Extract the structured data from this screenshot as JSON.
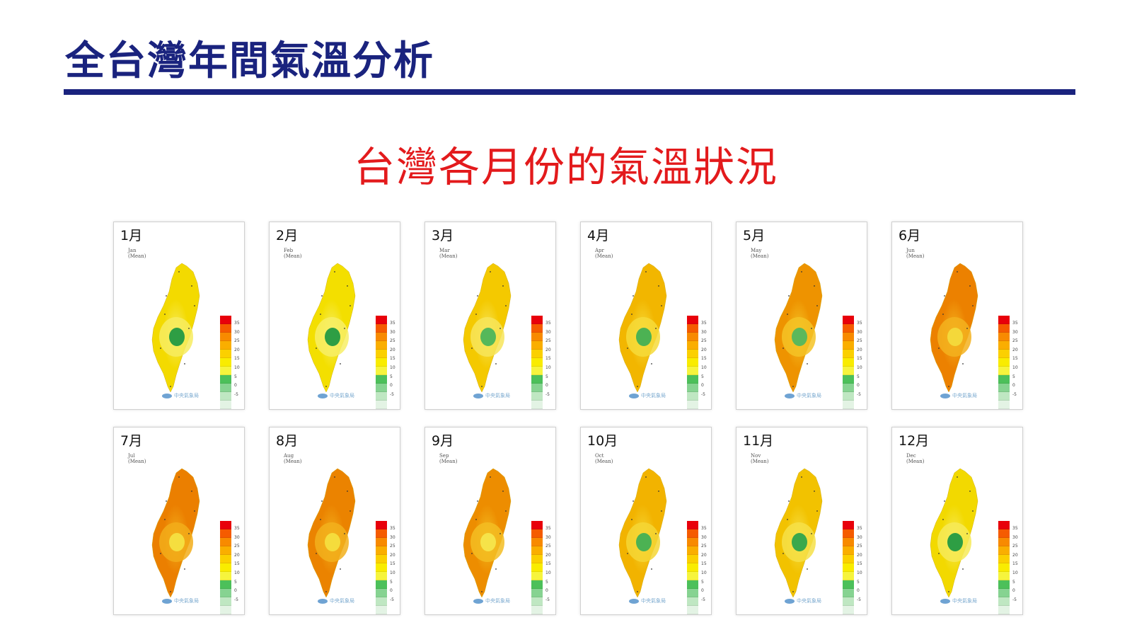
{
  "title": "全台灣年間氣溫分析",
  "subtitle": "台灣各月份的氣溫狀況",
  "legend": {
    "labels": [
      "35",
      "30",
      "25",
      "20",
      "15",
      "10",
      "5",
      "0",
      "-5"
    ],
    "colors": [
      "#e8000b",
      "#f55b00",
      "#f88a00",
      "#faae00",
      "#fbd000",
      "#f9ec00",
      "#f6f43d",
      "#4cc05a",
      "#86d391",
      "#bfe7c2",
      "#e3f3e4",
      "#f6fbf2"
    ]
  },
  "agency": "中央氣象局",
  "months": [
    {
      "label": "1月",
      "en": "Jan",
      "mean": "(Mean)",
      "fill": "#f3da00",
      "mid": "#f7ec60",
      "core": "#2e9e44"
    },
    {
      "label": "2月",
      "en": "Feb",
      "mean": "(Mean)",
      "fill": "#f3df00",
      "mid": "#f7ee66",
      "core": "#2e9e44"
    },
    {
      "label": "3月",
      "en": "Mar",
      "mean": "(Mean)",
      "fill": "#f4c900",
      "mid": "#f7e55a",
      "core": "#56b85a"
    },
    {
      "label": "4月",
      "en": "Apr",
      "mean": "(Mean)",
      "fill": "#f2b600",
      "mid": "#f6da3a",
      "core": "#4cb253"
    },
    {
      "label": "5月",
      "en": "May",
      "mean": "(Mean)",
      "fill": "#ee9300",
      "mid": "#f4c326",
      "core": "#5bb85b"
    },
    {
      "label": "6月",
      "en": "Jun",
      "mean": "(Mean)",
      "fill": "#ec8100",
      "mid": "#f3b21e",
      "core": "#f4d83a"
    },
    {
      "label": "7月",
      "en": "Jul",
      "mean": "(Mean)",
      "fill": "#eb7f00",
      "mid": "#f2ad1a",
      "core": "#f5de3f"
    },
    {
      "label": "8月",
      "en": "Aug",
      "mean": "(Mean)",
      "fill": "#eb8300",
      "mid": "#f2b01c",
      "core": "#f5dc3c"
    },
    {
      "label": "9月",
      "en": "Sep",
      "mean": "(Mean)",
      "fill": "#ed8d00",
      "mid": "#f3bd22",
      "core": "#f6e349"
    },
    {
      "label": "10月",
      "en": "Oct",
      "mean": "(Mean)",
      "fill": "#f2b300",
      "mid": "#f5d635",
      "core": "#4cb253"
    },
    {
      "label": "11月",
      "en": "Nov",
      "mean": "(Mean)",
      "fill": "#f2c200",
      "mid": "#f6e048",
      "core": "#3aa84c"
    },
    {
      "label": "12月",
      "en": "Dec",
      "mean": "(Mean)",
      "fill": "#f2d900",
      "mid": "#f6ea58",
      "core": "#2e9e44"
    }
  ]
}
